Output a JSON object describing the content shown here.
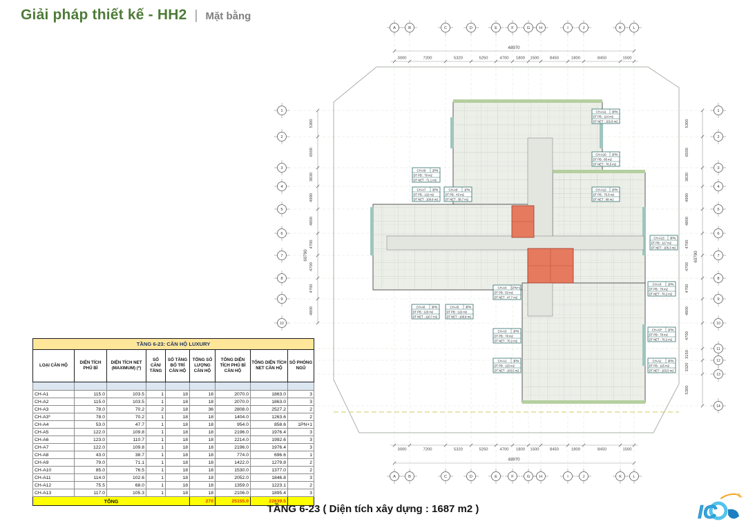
{
  "header": {
    "title": "Giải pháp thiết kế - HH2",
    "separator": "|",
    "subtitle": "Mặt bằng"
  },
  "table": {
    "title": "TẦNG 6-23: CĂN HỘ LUXURY",
    "columns": [
      "LOẠI CĂN HỘ",
      "DIỆN TÍCH PHỦ BÌ",
      "DIỆN TÍCH NET (MAXIMUM) (*)",
      "SỐ CĂN/ TẦNG",
      "SỐ TẦNG BỐ TRÍ CĂN HỘ",
      "TỔNG SỐ LƯỢNG CĂN HỘ",
      "TỔNG DIỆN TÍCH PHỦ BÌ CĂN HỘ",
      "TỔNG DIỆN TÍCH NET CĂN HỘ",
      "SỐ PHÒNG NGỦ"
    ],
    "rows": [
      [
        "CH-A1",
        "115.0",
        "103.5",
        "1",
        "18",
        "18",
        "2070.0",
        "1863.0",
        "3"
      ],
      [
        "CH-A2",
        "115.0",
        "103.5",
        "1",
        "18",
        "18",
        "2070.0",
        "1863.0",
        "3"
      ],
      [
        "CH-A3",
        "78.0",
        "70.2",
        "2",
        "18",
        "36",
        "2808.0",
        "2527.2",
        "2"
      ],
      [
        "CH-A3*",
        "78.0",
        "70.2",
        "1",
        "18",
        "18",
        "1404.0",
        "1263.6",
        "2"
      ],
      [
        "CH-A4",
        "53.0",
        "47.7",
        "1",
        "18",
        "18",
        "954.0",
        "858.6",
        "1PN+1"
      ],
      [
        "CH-A5",
        "122.0",
        "109.8",
        "1",
        "18",
        "18",
        "2196.0",
        "1976.4",
        "3"
      ],
      [
        "CH-A6",
        "123.0",
        "110.7",
        "1",
        "18",
        "18",
        "2214.0",
        "1992.6",
        "3"
      ],
      [
        "CH-A7",
        "122.0",
        "109.8",
        "1",
        "18",
        "18",
        "2196.0",
        "1976.4",
        "3"
      ],
      [
        "CH-A8",
        "43.0",
        "38.7",
        "1",
        "18",
        "18",
        "774.0",
        "696.6",
        "1"
      ],
      [
        "CH-A9",
        "79.0",
        "71.1",
        "1",
        "18",
        "18",
        "1422.0",
        "1279.8",
        "2"
      ],
      [
        "CH-A10",
        "85.0",
        "76.5",
        "1",
        "18",
        "18",
        "1530.0",
        "1377.0",
        "2"
      ],
      [
        "CH-A11",
        "114.0",
        "102.6",
        "1",
        "18",
        "18",
        "2052.0",
        "1846.8",
        "3"
      ],
      [
        "CH-A12",
        "75.5",
        "68.0",
        "1",
        "18",
        "18",
        "1359.0",
        "1223.1",
        "2"
      ],
      [
        "CH-A13",
        "117.0",
        "105.3",
        "1",
        "18",
        "18",
        "2106.0",
        "1895.4",
        "3"
      ]
    ],
    "total": {
      "label": "TỔNG",
      "count": "270",
      "pb": "25155.0",
      "net": "22639.5"
    }
  },
  "caption": "TẦNG 6-23 ( Diện tích xây dựng : 1687 m2 )",
  "plan": {
    "grid": {
      "col_letters": [
        "A",
        "B",
        "C",
        "D",
        "E",
        "F",
        "G",
        "H",
        "I",
        "J",
        "K",
        "L"
      ],
      "row_numbers": [
        "1",
        "2",
        "3",
        "4",
        "5",
        "6",
        "7",
        "8",
        "9",
        "10",
        "11",
        "12",
        "13",
        "14"
      ],
      "top_dims": [
        "3000",
        "7200",
        "5320",
        "5250",
        "4700",
        "1800",
        "1500",
        "8450",
        "1800",
        "8450",
        "1500"
      ],
      "side_dims": [
        "5300",
        "6500",
        "3830",
        "4990",
        "4800",
        "4700",
        "4700",
        "4700",
        "4800",
        "4700",
        "3150",
        "3320",
        "5300"
      ],
      "total_width": "48970",
      "total_height": "60790"
    },
    "units": [
      {
        "name": "CH-A11",
        "bed": "3PN",
        "pb": "DT PB : 114 m2",
        "net": "DT NET : 102.6 m2"
      },
      {
        "name": "CH-A10",
        "bed": "2PN",
        "pb": "DT PB : 85 m2",
        "net": "DT NET : 76.5 m2"
      },
      {
        "name": "CH-A9",
        "bed": "2PN",
        "pb": "DT PB : 79 m2",
        "net": "DT NET : 71.1 m2"
      },
      {
        "name": "CH-A7",
        "bed": "3PN",
        "pb": "DT PB : 122 m2",
        "net": "DT NET : 109.8 m2"
      },
      {
        "name": "CH-A8",
        "bed": "1PN",
        "pb": "DT PB : 43 m2",
        "net": "DT NET : 38.7 m2"
      },
      {
        "name": "CH-A12",
        "bed": "2PN",
        "pb": "DT PB : 75.5 m2",
        "net": "DT NET : 68 m2"
      },
      {
        "name": "CH-A13",
        "bed": "3PN",
        "pb": "DT PB : 117 m2",
        "net": "DT NET : 105.3 m2"
      },
      {
        "name": "CH-A4",
        "bed": "1PN+1",
        "pb": "DT PB : 53 m2",
        "net": "DT NET : 47.7 m2"
      },
      {
        "name": "CH-A6",
        "bed": "3PN",
        "pb": "DT PB : 123 m2",
        "net": "DT NET : 110.7 m2"
      },
      {
        "name": "CH-A5",
        "bed": "3PN",
        "pb": "DT PB : 122 m2",
        "net": "DT NET : 109.8 m2"
      },
      {
        "name": "CH-A3",
        "bed": "2PN",
        "pb": "DT PB : 78 m2",
        "net": "DT NET : 70.2 m2"
      },
      {
        "name": "CH-A1",
        "bed": "3PN",
        "pb": "DT PB : 115 m2",
        "net": "DT NET : 103.5 m2"
      },
      {
        "name": "CH-A3",
        "bed": "2PN",
        "pb": "DT PB : 78 m2",
        "net": "DT NET : 70.2 m2"
      },
      {
        "name": "CH-A3*",
        "bed": "2PN",
        "pb": "DT PB : 78 m2",
        "net": "DT NET : 70.2 m2"
      },
      {
        "name": "CH-A2",
        "bed": "3PN",
        "pb": "DT PB : 115 m2",
        "net": "DT NET : 103.5 m2"
      }
    ]
  },
  "logo": {
    "text": "IC"
  },
  "colors": {
    "title_green": "#4e7b38",
    "table_title_bg": "#ffe699",
    "total_bg": "#ffff00",
    "total_value_red": "#e03000",
    "spacer_blue": "#dce6f1",
    "core_red": "#e57a5f"
  }
}
